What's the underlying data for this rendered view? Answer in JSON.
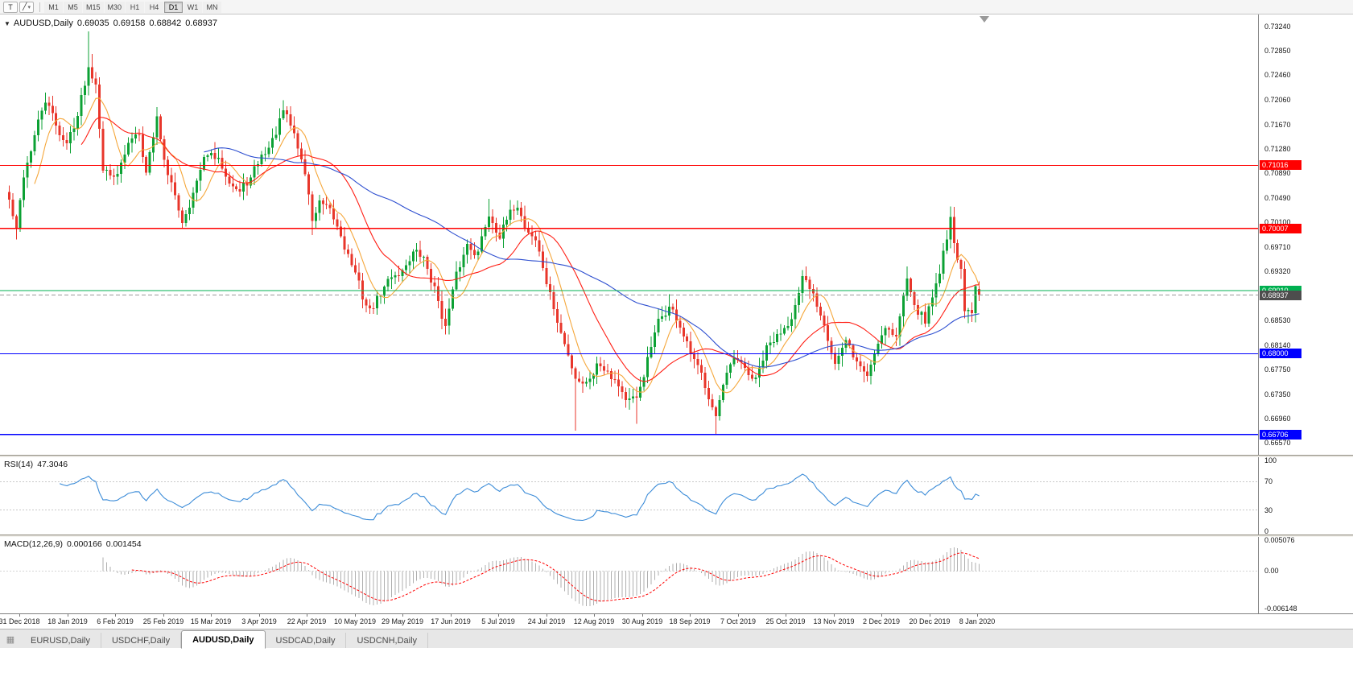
{
  "toolbar": {
    "tools": [
      {
        "id": "text-tool",
        "label": "T",
        "dropdown": false
      },
      {
        "id": "draw-tool",
        "label": "╱",
        "dropdown": true
      }
    ],
    "timeframes": [
      "M1",
      "M5",
      "M15",
      "M30",
      "H1",
      "H4",
      "D1",
      "W1",
      "MN"
    ],
    "active_timeframe": "D1"
  },
  "chart": {
    "collapse_icon": "▼",
    "title": "AUDUSD,Daily",
    "ohlc": {
      "open": "0.69035",
      "high": "0.69158",
      "low": "0.68842",
      "close": "0.68937"
    },
    "colors": {
      "up": "#0CA134",
      "down": "#E8362B",
      "ma_fast": "#F5A73B",
      "ma_mid": "#FF1E14",
      "ma_slow": "#2E4FD0"
    },
    "h_lines": [
      {
        "price": 0.71016,
        "label": "0.71016",
        "color": "#FF0000"
      },
      {
        "price": 0.70007,
        "label": "0.70007",
        "color": "#FF0000"
      },
      {
        "price": 0.6901,
        "label": "0.69010",
        "color": "#00B050"
      },
      {
        "price": 0.68,
        "label": "0.68000",
        "color": "#0000FF"
      },
      {
        "price": 0.66706,
        "label": "0.66706",
        "color": "#0000FF"
      }
    ],
    "current_price": {
      "value": 0.68937,
      "label": "0.68937",
      "color": "#4D4D4D"
    },
    "y_axis": [
      "0.73240",
      "0.72850",
      "0.72460",
      "0.72060",
      "0.71670",
      "0.71280",
      "0.70890",
      "0.70490",
      "0.70100",
      "0.69710",
      "0.69320",
      "0.68930",
      "0.68530",
      "0.68140",
      "0.67750",
      "0.67350",
      "0.66960",
      "0.66570"
    ],
    "x_axis": [
      "31 Dec 2018",
      "18 Jan 2019",
      "6 Feb 2019",
      "25 Feb 2019",
      "15 Mar 2019",
      "3 Apr 2019",
      "22 Apr 2019",
      "10 May 2019",
      "29 May 2019",
      "17 Jun 2019",
      "5 Jul 2019",
      "24 Jul 2019",
      "12 Aug 2019",
      "30 Aug 2019",
      "18 Sep 2019",
      "7 Oct 2019",
      "25 Oct 2019",
      "13 Nov 2019",
      "2 Dec 2019",
      "20 Dec 2019",
      "8 Jan 2020"
    ]
  },
  "chart_data": {
    "type": "candlestick",
    "symbol": "AUDUSD",
    "timeframe": "Daily",
    "num_candles": 270,
    "visible_range": {
      "price_max": 0.7338,
      "price_min": 0.6642
    },
    "last_candle": {
      "open": 0.69035,
      "high": 0.69158,
      "low": 0.68842,
      "close": 0.68937
    },
    "price_path": [
      [
        0,
        0.7045
      ],
      [
        2,
        0.6995
      ],
      [
        4,
        0.7085
      ],
      [
        7,
        0.715
      ],
      [
        10,
        0.7205
      ],
      [
        13,
        0.7165
      ],
      [
        16,
        0.7135
      ],
      [
        19,
        0.7185
      ],
      [
        22,
        0.726
      ],
      [
        24,
        0.724
      ],
      [
        26,
        0.7105
      ],
      [
        28,
        0.7085
      ],
      [
        31,
        0.7105
      ],
      [
        34,
        0.7145
      ],
      [
        36,
        0.716
      ],
      [
        38,
        0.7095
      ],
      [
        41,
        0.718
      ],
      [
        44,
        0.7085
      ],
      [
        48,
        0.7015
      ],
      [
        52,
        0.7075
      ],
      [
        55,
        0.712
      ],
      [
        58,
        0.7105
      ],
      [
        61,
        0.7085
      ],
      [
        64,
        0.706
      ],
      [
        67,
        0.708
      ],
      [
        70,
        0.7115
      ],
      [
        73,
        0.714
      ],
      [
        76,
        0.7185
      ],
      [
        79,
        0.715
      ],
      [
        82,
        0.709
      ],
      [
        84,
        0.7015
      ],
      [
        86,
        0.704
      ],
      [
        89,
        0.702
      ],
      [
        92,
        0.699
      ],
      [
        95,
        0.6945
      ],
      [
        98,
        0.689
      ],
      [
        100,
        0.6868
      ],
      [
        103,
        0.6895
      ],
      [
        106,
        0.6925
      ],
      [
        109,
        0.6935
      ],
      [
        112,
        0.6965
      ],
      [
        115,
        0.695
      ],
      [
        118,
        0.6905
      ],
      [
        121,
        0.6845
      ],
      [
        124,
        0.692
      ],
      [
        127,
        0.6975
      ],
      [
        130,
        0.6965
      ],
      [
        133,
        0.7025
      ],
      [
        136,
        0.6995
      ],
      [
        139,
        0.702
      ],
      [
        141,
        0.704
      ],
      [
        143,
        0.7005
      ],
      [
        146,
        0.6985
      ],
      [
        149,
        0.6915
      ],
      [
        152,
        0.685
      ],
      [
        155,
        0.6795
      ],
      [
        157,
        0.6765
      ],
      [
        160,
        0.6755
      ],
      [
        163,
        0.6785
      ],
      [
        166,
        0.678
      ],
      [
        169,
        0.6755
      ],
      [
        171,
        0.673
      ],
      [
        174,
        0.672
      ],
      [
        177,
        0.679
      ],
      [
        180,
        0.6845
      ],
      [
        183,
        0.6875
      ],
      [
        186,
        0.6845
      ],
      [
        189,
        0.6795
      ],
      [
        192,
        0.676
      ],
      [
        195,
        0.6725
      ],
      [
        196,
        0.6705
      ],
      [
        198,
        0.6745
      ],
      [
        201,
        0.6785
      ],
      [
        204,
        0.677
      ],
      [
        207,
        0.6755
      ],
      [
        210,
        0.6805
      ],
      [
        213,
        0.6825
      ],
      [
        216,
        0.6855
      ],
      [
        219,
        0.6895
      ],
      [
        220,
        0.6915
      ],
      [
        223,
        0.689
      ],
      [
        226,
        0.6855
      ],
      [
        229,
        0.679
      ],
      [
        232,
        0.6815
      ],
      [
        235,
        0.6785
      ],
      [
        238,
        0.6765
      ],
      [
        241,
        0.682
      ],
      [
        243,
        0.685
      ],
      [
        246,
        0.683
      ],
      [
        249,
        0.692
      ],
      [
        252,
        0.6875
      ],
      [
        254,
        0.6855
      ],
      [
        256,
        0.689
      ],
      [
        258,
        0.6935
      ],
      [
        260,
        0.699
      ],
      [
        261,
        0.7025
      ],
      [
        262,
        0.6985
      ],
      [
        263,
        0.695
      ],
      [
        264,
        0.6935
      ],
      [
        265,
        0.6875
      ],
      [
        266,
        0.6865
      ],
      [
        267,
        0.6858
      ],
      [
        268,
        0.6902
      ],
      [
        269,
        0.68937
      ]
    ],
    "wick_events": [
      {
        "d": 2,
        "low": 0.6983
      },
      {
        "d": 22,
        "high": 0.7316
      },
      {
        "d": 23,
        "high": 0.728
      },
      {
        "d": 48,
        "low": 0.7
      },
      {
        "d": 76,
        "high": 0.7206
      },
      {
        "d": 84,
        "low": 0.699
      },
      {
        "d": 100,
        "low": 0.6864
      },
      {
        "d": 121,
        "low": 0.6832
      },
      {
        "d": 133,
        "high": 0.7048
      },
      {
        "d": 157,
        "low": 0.6677
      },
      {
        "d": 174,
        "low": 0.6688
      },
      {
        "d": 183,
        "high": 0.6895
      },
      {
        "d": 196,
        "low": 0.667
      },
      {
        "d": 220,
        "high": 0.693
      },
      {
        "d": 249,
        "high": 0.694
      },
      {
        "d": 261,
        "high": 0.7036
      },
      {
        "d": 266,
        "low": 0.6849
      }
    ],
    "moving_averages": [
      {
        "period": 8,
        "color_key": "ma_fast"
      },
      {
        "period": 21,
        "color_key": "ma_mid"
      },
      {
        "period": 55,
        "color_key": "ma_slow"
      }
    ]
  },
  "rsi": {
    "label": "RSI(14)",
    "value": "47.3046",
    "period": 14,
    "levels": [
      70,
      30
    ],
    "axis": [
      {
        "text": "100",
        "v": 100
      },
      {
        "text": "70",
        "v": 70
      },
      {
        "text": "30",
        "v": 30
      },
      {
        "text": "0",
        "v": 0
      }
    ],
    "color": "#3C8CD8"
  },
  "macd": {
    "label": "MACD(12,26,9)",
    "main": "0.000166",
    "signal": "0.001454",
    "axis": [
      {
        "text": "0.005076",
        "v": 0.005076
      },
      {
        "text": "0.00",
        "v": 0
      },
      {
        "text": "-0.006148",
        "v": -0.006148
      }
    ],
    "axis_max_value": 0.005076,
    "axis_min_value": -0.006148,
    "hist_color": "#AFAFAF",
    "signal_color": "#FF0000"
  },
  "tabs": {
    "icon": "▦",
    "items": [
      "EURUSD,Daily",
      "USDCHF,Daily",
      "AUDUSD,Daily",
      "USDCAD,Daily",
      "USDCNH,Daily"
    ],
    "active": "AUDUSD,Daily"
  }
}
